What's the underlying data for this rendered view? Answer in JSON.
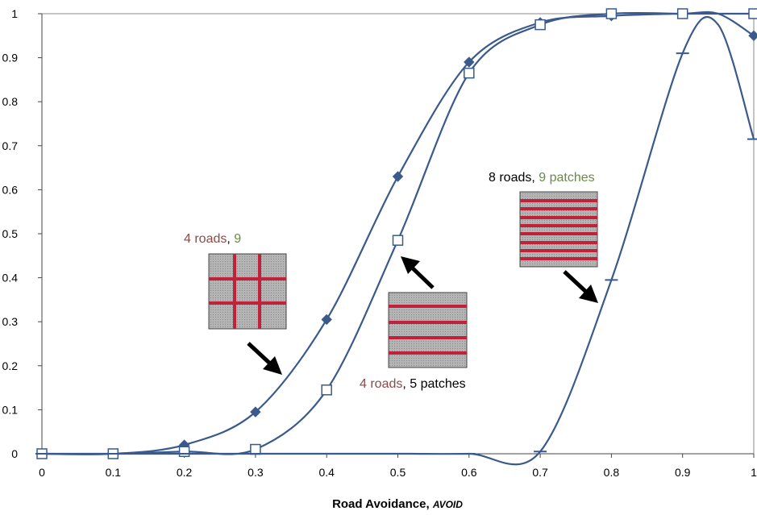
{
  "chart_data": {
    "type": "line",
    "xlabel_main": "Road Avoidance, ",
    "xlabel_var": "AVOID",
    "ylabel": "",
    "xlim": [
      0,
      1
    ],
    "ylim": [
      0,
      1
    ],
    "x_ticks": [
      "0",
      "0.1",
      "0.2",
      "0.3",
      "0.4",
      "0.5",
      "0.6",
      "0.7",
      "0.8",
      "0.9",
      "1"
    ],
    "y_ticks": [
      "0",
      "0.1",
      "0.2",
      "0.3",
      "0.4",
      "0.5",
      "0.6",
      "0.7",
      "0.8",
      "0.9",
      "1"
    ],
    "grid": false,
    "line_color": "#3a5a8c",
    "road_color": "#c0223a",
    "series": [
      {
        "marker": "diamond",
        "x": [
          0,
          0.1,
          0.2,
          0.3,
          0.4,
          0.5,
          0.6,
          0.7,
          0.8,
          0.9,
          0.95,
          1
        ],
        "values": [
          0,
          0,
          0.02,
          0.095,
          0.305,
          0.63,
          0.89,
          0.98,
          0.995,
          1,
          1,
          0.95
        ]
      },
      {
        "marker": "square",
        "x": [
          0,
          0.1,
          0.2,
          0.3,
          0.4,
          0.5,
          0.6,
          0.7,
          0.8,
          0.9,
          0.95,
          1
        ],
        "values": [
          0,
          0,
          0.005,
          0.01,
          0.145,
          0.485,
          0.865,
          0.975,
          1,
          1,
          1,
          1
        ]
      },
      {
        "marker": "dash",
        "x": [
          0,
          0.1,
          0.2,
          0.3,
          0.4,
          0.5,
          0.6,
          0.7,
          0.8,
          0.9,
          0.95,
          1
        ],
        "values": [
          0,
          0,
          0,
          0,
          0,
          0,
          0,
          0.005,
          0.395,
          0.91,
          0.975,
          0.715
        ]
      }
    ],
    "annotations": [
      {
        "parts": [
          {
            "text": "4 roads",
            "color": "#8b4a4a"
          },
          {
            "text": ", ",
            "color": "#000000"
          },
          {
            "text": "9",
            "color": "#6a8a4a"
          }
        ]
      },
      {
        "parts": [
          {
            "text": "4 roads",
            "color": "#8b4a4a"
          },
          {
            "text": ", 5 patches",
            "color": "#000000"
          }
        ]
      },
      {
        "parts": [
          {
            "text": "8 roads",
            "color": "#000000"
          },
          {
            "text": ", ",
            "color": "#000000"
          },
          {
            "text": "9 patches",
            "color": "#6a8a4a"
          }
        ]
      }
    ]
  }
}
